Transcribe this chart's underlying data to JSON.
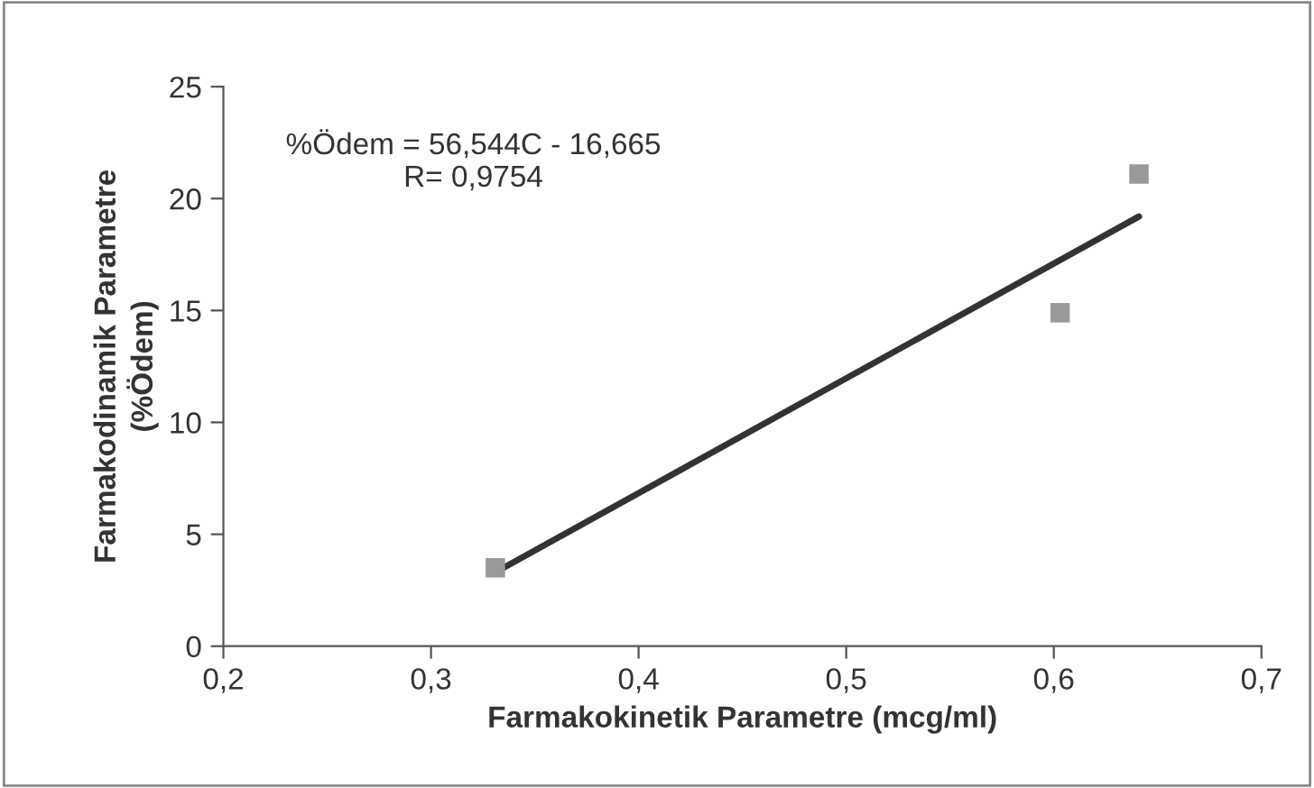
{
  "chart_data": {
    "type": "scatter",
    "xlabel": "Farmakokinetik Parametre (mcg/ml)",
    "ylabel": "Farmakodinamik Parametre\n(%Ödem)",
    "xlim": [
      0.2,
      0.7
    ],
    "xticks": [
      {
        "value": 0.2,
        "label": "0,2"
      },
      {
        "value": 0.3,
        "label": "0,3"
      },
      {
        "value": 0.4,
        "label": "0,4"
      },
      {
        "value": 0.5,
        "label": "0,5"
      },
      {
        "value": 0.6,
        "label": "0,6"
      },
      {
        "value": 0.7,
        "label": "0,7"
      }
    ],
    "ylim": [
      0,
      25
    ],
    "yticks": [
      0,
      5,
      10,
      15,
      20,
      25
    ],
    "grid": false,
    "series": [
      {
        "marker": "square",
        "color": "#999999",
        "x": [
          0.331,
          0.603,
          0.641
        ],
        "values": [
          3.5,
          14.9,
          21.1
        ]
      },
      {
        "type": "line",
        "marker": "none",
        "color": "#333333",
        "x": [
          0.331,
          0.641
        ],
        "values": [
          3.3,
          19.2
        ]
      }
    ],
    "annotations": [
      "%Ödem = 56,544C - 16,665\nR= 0,9754"
    ]
  }
}
